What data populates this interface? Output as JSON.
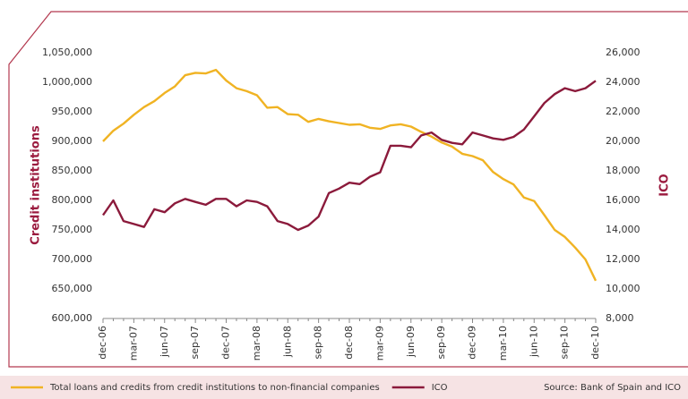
{
  "chart_data": {
    "type": "line",
    "categories": [
      "dec-06",
      null,
      null,
      "mar-07",
      null,
      null,
      "jun-07",
      null,
      null,
      "sep-07",
      null,
      null,
      "dec-07",
      null,
      null,
      "mar-08",
      null,
      null,
      "jun-08",
      null,
      null,
      "sep-08",
      null,
      null,
      "dec-08",
      null,
      null,
      "mar-09",
      null,
      null,
      "jun-09",
      null,
      null,
      "sep-09",
      null,
      null,
      "dec-09",
      null,
      null,
      "mar-10",
      null,
      null,
      "jun-10",
      null,
      null,
      "sep-10",
      null,
      null,
      "dec-10"
    ],
    "series": [
      {
        "name": "Total loans and credits from credit institutions to non-financial companies",
        "color": "#f0b323",
        "axis": "y",
        "values": [
          900000,
          918000,
          930000,
          945000,
          958000,
          968000,
          982000,
          993000,
          1012000,
          1016000,
          1015000,
          1021000,
          1003000,
          990000,
          985000,
          978000,
          957000,
          958000,
          946000,
          945000,
          933000,
          938000,
          934000,
          931000,
          928000,
          929000,
          923000,
          921000,
          927000,
          929000,
          925000,
          916000,
          908000,
          898000,
          891000,
          879000,
          875000,
          868000,
          848000,
          836000,
          827000,
          805000,
          799000,
          775000,
          750000,
          738000,
          720000,
          700000,
          664000
        ]
      },
      {
        "name": "ICO",
        "color": "#8b1a3b",
        "axis": "y2",
        "values": [
          15000,
          16000,
          14600,
          14400,
          14200,
          15400,
          15200,
          15800,
          16100,
          15900,
          15700,
          16100,
          16100,
          15600,
          16000,
          15900,
          15600,
          14600,
          14400,
          14000,
          14300,
          14900,
          16500,
          16800,
          17200,
          17100,
          17600,
          17900,
          19700,
          19700,
          19600,
          20400,
          20600,
          20100,
          19900,
          19800,
          20600,
          20400,
          20200,
          20100,
          20300,
          20800,
          21700,
          22600,
          23200,
          23600,
          23400,
          23600,
          24100
        ]
      }
    ],
    "ylabel": "Credit institutions",
    "y2label": "ICO",
    "ylim": [
      600000,
      1050000
    ],
    "yticks": [
      {
        "value": 600000,
        "label": "600,000"
      },
      {
        "value": 650000,
        "label": "650,000"
      },
      {
        "value": 700000,
        "label": "700,000"
      },
      {
        "value": 750000,
        "label": "750,000"
      },
      {
        "value": 800000,
        "label": "800,000"
      },
      {
        "value": 850000,
        "label": "850,000"
      },
      {
        "value": 900000,
        "label": "900,000"
      },
      {
        "value": 950000,
        "label": "950,000"
      },
      {
        "value": 1000000,
        "label": "1,000,000"
      },
      {
        "value": 1050000,
        "label": "1,050,000"
      }
    ],
    "y2lim": [
      8000,
      26000
    ],
    "y2ticks": [
      {
        "value": 8000,
        "label": "8,000"
      },
      {
        "value": 10000,
        "label": "10,000"
      },
      {
        "value": 12000,
        "label": "12,000"
      },
      {
        "value": 14000,
        "label": "14,000"
      },
      {
        "value": 16000,
        "label": "16,000"
      },
      {
        "value": 18000,
        "label": "18,000"
      },
      {
        "value": 20000,
        "label": "20,000"
      },
      {
        "value": 22000,
        "label": "22,000"
      },
      {
        "value": 24000,
        "label": "24,000"
      },
      {
        "value": 26000,
        "label": "26,000"
      }
    ],
    "source": "Source: Bank of Spain and ICO",
    "grid": false,
    "legend": "bottom"
  }
}
